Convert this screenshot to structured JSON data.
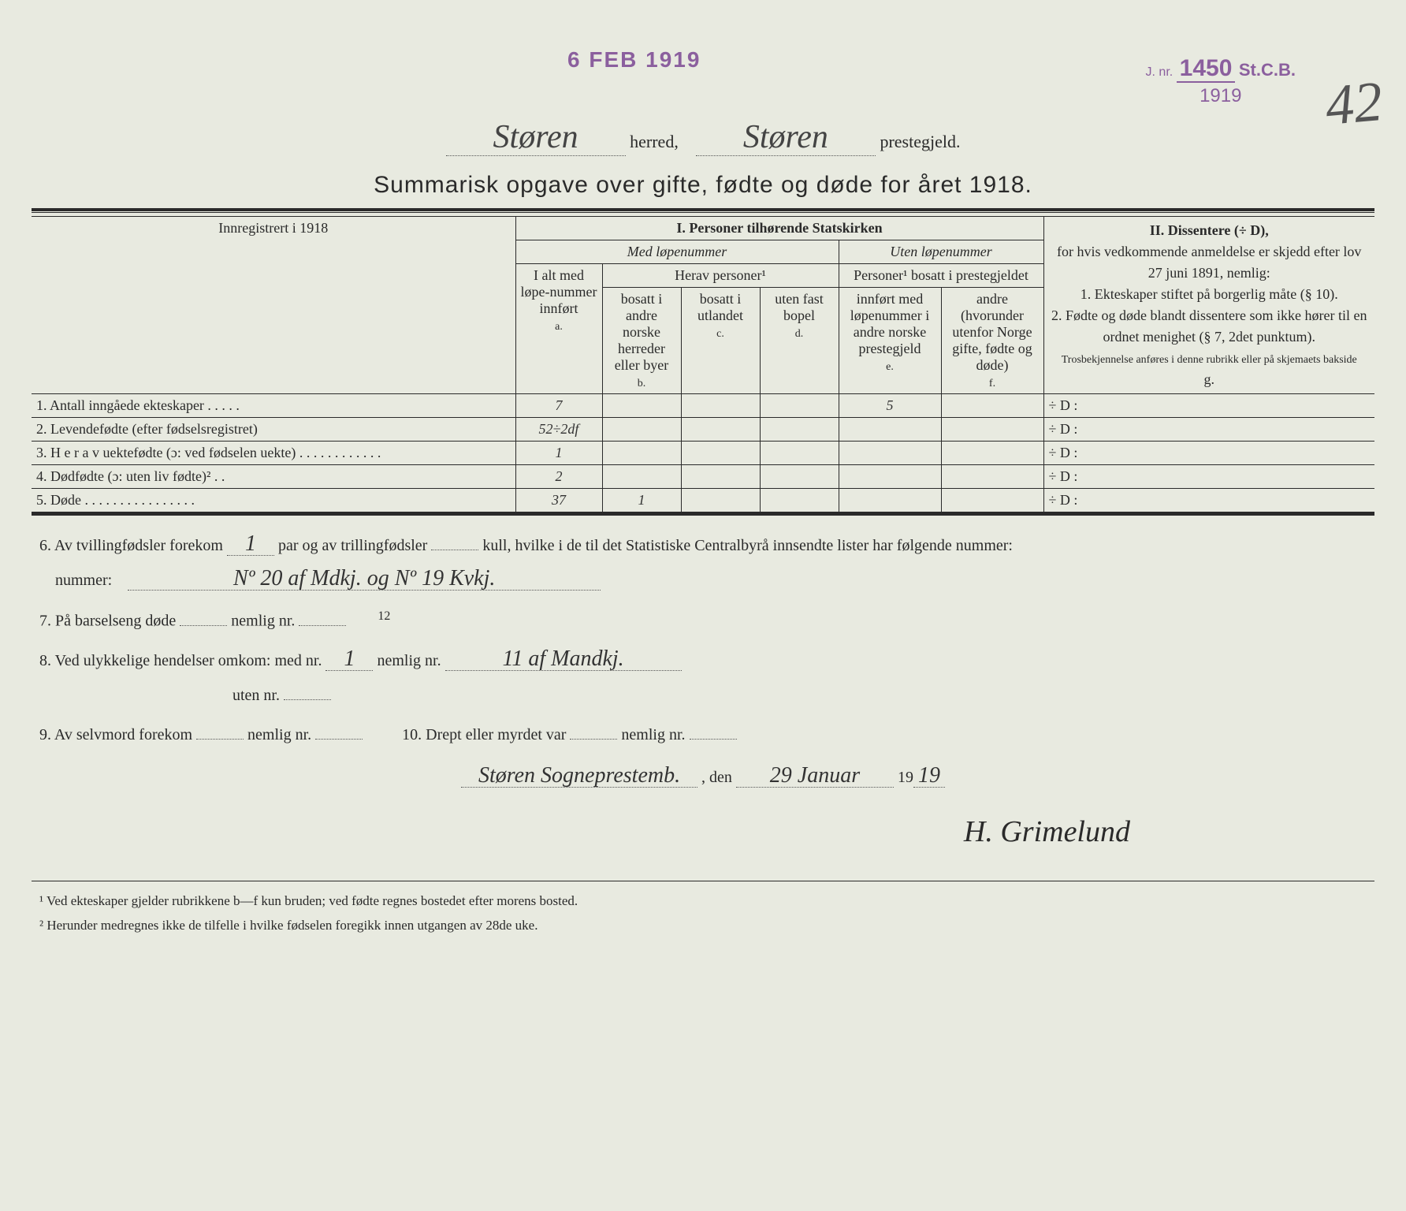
{
  "stamps": {
    "date_received": "6 FEB 1919",
    "jnr_prefix": "J. nr.",
    "jnr_number": "1450",
    "jnr_suffix": "St.C.B.",
    "jnr_year": "1919"
  },
  "page_number_handwritten": "42",
  "header": {
    "herred_value": "Støren",
    "herred_label": "herred,",
    "prestegjeld_value": "Støren",
    "prestegjeld_label": "prestegjeld."
  },
  "title": "Summarisk opgave over gifte, fødte og døde for året 1918.",
  "table": {
    "registered_label": "Innregistrert i 1918",
    "section1_title": "I.  Personer tilhørende Statskirken",
    "med_lopenummer": "Med løpenummer",
    "uten_lopenummer": "Uten løpenummer",
    "herav_personer": "Herav personer¹",
    "personer_bosatt": "Personer¹ bosatt i prestegjeldet",
    "col_a": "I alt med løpe-nummer innført",
    "col_a_letter": "a.",
    "col_b": "bosatt i andre norske herreder eller byer",
    "col_b_letter": "b.",
    "col_c": "bosatt i utlandet",
    "col_c_letter": "c.",
    "col_d": "uten fast bopel",
    "col_d_letter": "d.",
    "col_e": "innført med løpenummer i andre norske prestegjeld",
    "col_e_letter": "e.",
    "col_f": "andre (hvorunder utenfor Norge gifte, fødte og døde)",
    "col_f_letter": "f.",
    "section2_title": "II.  Dissentere (÷ D),",
    "section2_body1": "for hvis vedkommende anmeldelse er skjedd efter lov 27 juni 1891, nemlig:",
    "section2_item1": "1. Ekteskaper stiftet på borgerlig måte (§ 10).",
    "section2_item2": "2. Fødte og døde blandt dissentere som ikke hører til en ordnet menighet (§ 7, 2det punktum).",
    "section2_note": "Trosbekjennelse anføres i denne rubrikk eller på skjemaets bakside",
    "col_g_letter": "g.",
    "rows": [
      {
        "label": "1. Antall inngåede ekteskaper . . . . .",
        "a": "7",
        "b": "",
        "c": "",
        "d": "",
        "e": "5",
        "f": "",
        "g": "÷ D :"
      },
      {
        "label": "2. Levendefødte (efter fødselsregistret)",
        "a": "52÷2df",
        "b": "",
        "c": "",
        "d": "",
        "e": "",
        "f": "",
        "g": "÷ D :"
      },
      {
        "label": "3. H e r a v uektefødte (ɔ: ved fødselen uekte) . . . . . . . . . . . .",
        "a": "1",
        "b": "",
        "c": "",
        "d": "",
        "e": "",
        "f": "",
        "g": "÷ D :"
      },
      {
        "label": "4. Dødfødte (ɔ: uten liv fødte)² . .",
        "a": "2",
        "b": "",
        "c": "",
        "d": "",
        "e": "",
        "f": "",
        "g": "÷ D :"
      },
      {
        "label": "5. Døde . . . . . . . . . . . . . . . .",
        "a": "37",
        "b": "1",
        "c": "",
        "d": "",
        "e": "",
        "f": "",
        "g": "÷ D :"
      }
    ]
  },
  "below": {
    "q6_pre": "6. Av tvillingfødsler forekom",
    "q6_twins": "1",
    "q6_mid": "par og av trillingfødsler",
    "q6_triplets": "",
    "q6_post": "kull, hvilke i de til det Statistiske Centralbyrå innsendte lister har følgende nummer:",
    "q6_numbers": "Nº 20 af Mdkj. og Nº 19 Kvkj.",
    "q7_pre": "7. På barselseng døde",
    "q7_val": "",
    "q7_post": "nemlig nr.",
    "q7_nr": "",
    "q8_annotation": "12",
    "q8_pre": "8. Ved ulykkelige hendelser omkom:  med nr.",
    "q8_med": "1",
    "q8_nemlig": "nemlig nr.",
    "q8_nemlig_val": "11 af Mandkj.",
    "q8_uten": "uten nr.",
    "q8_uten_val": "",
    "q9_pre": "9. Av selvmord forekom",
    "q9_val": "",
    "q9_nemlig": "nemlig nr.",
    "q9_nemlig_val": "",
    "q10_pre": "10.  Drept eller myrdet var",
    "q10_val": "",
    "q10_nemlig": "nemlig nr.",
    "q10_nemlig_val": "",
    "place_signed": "Støren Sogneprestemb.",
    "den_label": ", den",
    "date_signed": "29 Januar",
    "year_prefix": "19",
    "year_suffix": "19",
    "signature": "H. Grimelund"
  },
  "footnotes": {
    "fn1": "¹  Ved ekteskaper gjelder rubrikkene b—f kun bruden; ved fødte regnes bostedet efter morens bosted.",
    "fn2": "²  Herunder medregnes ikke de tilfelle i hvilke fødselen foregikk innen utgangen av 28de uke."
  },
  "colors": {
    "paper": "#e8eae0",
    "ink": "#2a2a2a",
    "stamp": "#8b5f9e",
    "handwriting": "#333333"
  }
}
